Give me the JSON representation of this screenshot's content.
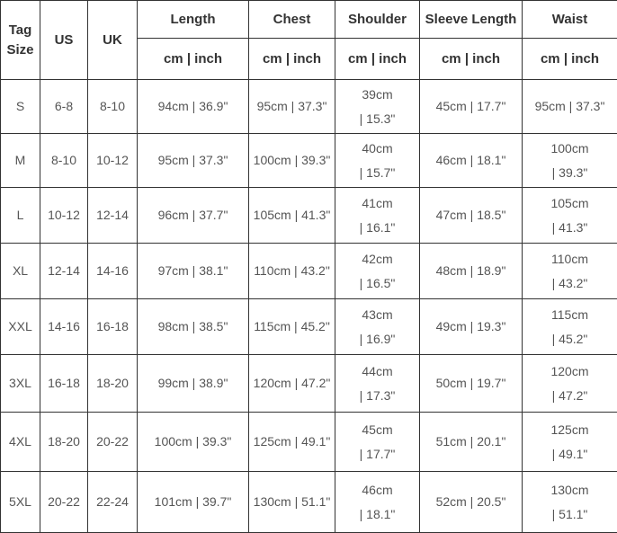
{
  "colors": {
    "border": "#333333",
    "header_text": "#333333",
    "cell_text": "#555555",
    "background": "#ffffff"
  },
  "table": {
    "columns": {
      "tag": "Tag Size",
      "us": "US",
      "uk": "UK",
      "length": "Length",
      "chest": "Chest",
      "shoulder": "Shoulder",
      "sleeve": "Sleeve Length",
      "waist": "Waist"
    },
    "unit_label": "cm | inch",
    "rows": [
      {
        "tag": "S",
        "us": "6-8",
        "uk": "8-10",
        "length": "94cm | 36.9\"",
        "chest": "95cm | 37.3\"",
        "shoulder": "39cm\n| 15.3\"",
        "sleeve": "45cm | 17.7\"",
        "waist": "95cm | 37.3\""
      },
      {
        "tag": "M",
        "us": "8-10",
        "uk": "10-12",
        "length": "95cm | 37.3\"",
        "chest": "100cm | 39.3\"",
        "shoulder": "40cm\n| 15.7\"",
        "sleeve": "46cm | 18.1\"",
        "waist": "100cm\n| 39.3\""
      },
      {
        "tag": "L",
        "us": "10-12",
        "uk": "12-14",
        "length": "96cm | 37.7\"",
        "chest": "105cm | 41.3\"",
        "shoulder": "41cm\n| 16.1\"",
        "sleeve": "47cm | 18.5\"",
        "waist": "105cm\n| 41.3\""
      },
      {
        "tag": "XL",
        "us": "12-14",
        "uk": "14-16",
        "length": "97cm | 38.1\"",
        "chest": "110cm | 43.2\"",
        "shoulder": "42cm\n| 16.5\"",
        "sleeve": "48cm | 18.9\"",
        "waist": "110cm\n| 43.2\""
      },
      {
        "tag": "XXL",
        "us": "14-16",
        "uk": "16-18",
        "length": "98cm | 38.5\"",
        "chest": "115cm | 45.2\"",
        "shoulder": "43cm\n| 16.9\"",
        "sleeve": "49cm | 19.3\"",
        "waist": "115cm\n| 45.2\""
      },
      {
        "tag": "3XL",
        "us": "16-18",
        "uk": "18-20",
        "length": "99cm | 38.9\"",
        "chest": "120cm | 47.2\"",
        "shoulder": "44cm\n| 17.3\"",
        "sleeve": "50cm | 19.7\"",
        "waist": "120cm\n| 47.2\""
      },
      {
        "tag": "4XL",
        "us": "18-20",
        "uk": "20-22",
        "length": "100cm | 39.3\"",
        "chest": "125cm | 49.1\"",
        "shoulder": "45cm\n| 17.7\"",
        "sleeve": "51cm | 20.1\"",
        "waist": "125cm\n| 49.1\""
      },
      {
        "tag": "5XL",
        "us": "20-22",
        "uk": "22-24",
        "length": "101cm | 39.7\"",
        "chest": "130cm | 51.1\"",
        "shoulder": "46cm\n| 18.1\"",
        "sleeve": "52cm | 20.5\"",
        "waist": "130cm\n| 51.1\""
      }
    ]
  }
}
